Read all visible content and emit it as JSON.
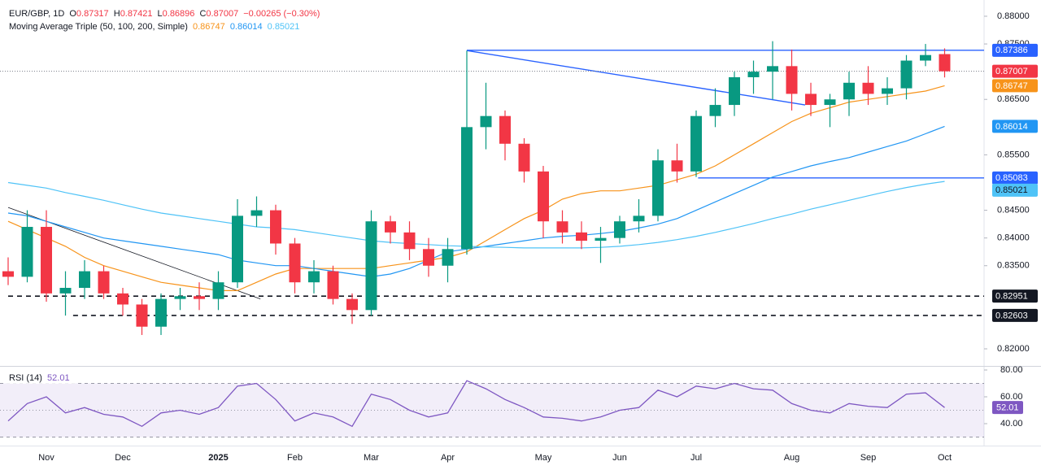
{
  "chart_data": [
    {
      "type": "candlestick",
      "symbol": "EUR/GBP, 1D",
      "ohlc_letters": [
        "O",
        "H",
        "L",
        "C"
      ],
      "change": "−0.00265 (−0.30%)",
      "indicator": "Moving Average Triple (50, 100, 200, Simple)",
      "up_color": "#089981",
      "down_color": "#f23645",
      "open": [
        0.834,
        0.833,
        0.842,
        0.83,
        0.831,
        0.834,
        0.83,
        0.828,
        0.824,
        0.829,
        0.8295,
        0.829,
        0.832,
        0.844,
        0.845,
        0.839,
        0.832,
        0.834,
        0.829,
        0.827,
        0.843,
        0.841,
        0.838,
        0.835,
        0.838,
        0.86,
        0.862,
        0.857,
        0.852,
        0.843,
        0.841,
        0.8395,
        0.84,
        0.843,
        0.844,
        0.854,
        0.852,
        0.862,
        0.864,
        0.869,
        0.87,
        0.871,
        0.866,
        0.864,
        0.865,
        0.868,
        0.866,
        0.867,
        0.872,
        0.87317
      ],
      "high": [
        0.8365,
        0.845,
        0.845,
        0.834,
        0.836,
        0.835,
        0.831,
        0.829,
        0.83,
        0.831,
        0.832,
        0.834,
        0.847,
        0.8475,
        0.846,
        0.84,
        0.836,
        0.835,
        0.83,
        0.845,
        0.844,
        0.843,
        0.84,
        0.84,
        0.8738,
        0.868,
        0.863,
        0.858,
        0.853,
        0.845,
        0.843,
        0.842,
        0.844,
        0.847,
        0.856,
        0.857,
        0.863,
        0.867,
        0.87,
        0.872,
        0.8755,
        0.874,
        0.868,
        0.866,
        0.87,
        0.871,
        0.869,
        0.873,
        0.875,
        0.87421
      ],
      "low": [
        0.8315,
        0.832,
        0.8285,
        0.826,
        0.829,
        0.829,
        0.826,
        0.8225,
        0.8225,
        0.827,
        0.827,
        0.827,
        0.831,
        0.842,
        0.837,
        0.83,
        0.83,
        0.828,
        0.8245,
        0.826,
        0.839,
        0.836,
        0.833,
        0.832,
        0.837,
        0.856,
        0.854,
        0.85,
        0.84,
        0.839,
        0.838,
        0.8355,
        0.839,
        0.841,
        0.843,
        0.85,
        0.851,
        0.86,
        0.862,
        0.866,
        0.865,
        0.863,
        0.862,
        0.86,
        0.862,
        0.864,
        0.864,
        0.865,
        0.871,
        0.86896
      ],
      "close": [
        0.833,
        0.842,
        0.83,
        0.831,
        0.834,
        0.83,
        0.828,
        0.824,
        0.829,
        0.8295,
        0.829,
        0.832,
        0.844,
        0.845,
        0.839,
        0.832,
        0.834,
        0.829,
        0.827,
        0.843,
        0.841,
        0.838,
        0.835,
        0.838,
        0.86,
        0.862,
        0.857,
        0.852,
        0.843,
        0.841,
        0.8395,
        0.84,
        0.843,
        0.844,
        0.854,
        0.852,
        0.862,
        0.864,
        0.869,
        0.87,
        0.871,
        0.866,
        0.864,
        0.865,
        0.868,
        0.866,
        0.867,
        0.872,
        0.873,
        0.87007
      ],
      "series": [
        {
          "color": "#f7931a",
          "values": [
            0.843,
            0.8415,
            0.84,
            0.8385,
            0.8365,
            0.835,
            0.834,
            0.833,
            0.832,
            0.8315,
            0.831,
            0.8305,
            0.8305,
            0.832,
            0.8335,
            0.8345,
            0.8345,
            0.8345,
            0.8345,
            0.8345,
            0.835,
            0.8355,
            0.836,
            0.8365,
            0.8375,
            0.8395,
            0.8415,
            0.8435,
            0.845,
            0.847,
            0.848,
            0.8485,
            0.8485,
            0.849,
            0.8495,
            0.8505,
            0.8515,
            0.853,
            0.855,
            0.857,
            0.859,
            0.861,
            0.8625,
            0.8635,
            0.8645,
            0.865,
            0.8655,
            0.866,
            0.8665,
            0.86747
          ]
        },
        {
          "color": "#2196f3",
          "values": [
            0.8445,
            0.844,
            0.843,
            0.842,
            0.841,
            0.84,
            0.8395,
            0.839,
            0.8385,
            0.838,
            0.8375,
            0.837,
            0.836,
            0.8355,
            0.835,
            0.835,
            0.8345,
            0.834,
            0.8335,
            0.833,
            0.8335,
            0.8345,
            0.836,
            0.8375,
            0.838,
            0.8385,
            0.839,
            0.8395,
            0.84,
            0.8403,
            0.8405,
            0.8408,
            0.8412,
            0.8418,
            0.8425,
            0.8435,
            0.845,
            0.8465,
            0.848,
            0.8495,
            0.851,
            0.852,
            0.853,
            0.8538,
            0.8545,
            0.8555,
            0.8565,
            0.8575,
            0.8588,
            0.86014
          ]
        },
        {
          "color": "#4fc3f7",
          "values": [
            0.85,
            0.8495,
            0.849,
            0.8482,
            0.8475,
            0.8468,
            0.846,
            0.8452,
            0.8445,
            0.844,
            0.8435,
            0.843,
            0.8425,
            0.842,
            0.8418,
            0.8415,
            0.841,
            0.8405,
            0.84,
            0.8395,
            0.8392,
            0.839,
            0.8388,
            0.8386,
            0.8385,
            0.8384,
            0.8383,
            0.8382,
            0.8382,
            0.8382,
            0.8382,
            0.8383,
            0.8385,
            0.8388,
            0.8392,
            0.8397,
            0.8403,
            0.841,
            0.8418,
            0.8426,
            0.8435,
            0.8443,
            0.8452,
            0.846,
            0.8468,
            0.8476,
            0.8484,
            0.8491,
            0.8497,
            0.85021
          ]
        }
      ],
      "levels": [
        {
          "value": 0.87386,
          "from": 24,
          "color": "#2962ff",
          "style": "solid"
        },
        {
          "value": 0.85083,
          "from": 36.1,
          "color": "#2962ff",
          "style": "solid"
        },
        {
          "value": 0.82951,
          "from": 0,
          "color": "#131722",
          "style": "dashed"
        },
        {
          "value": 0.82603,
          "from": 3.4,
          "color": "#131722",
          "style": "dashed"
        }
      ],
      "trendlines": [
        {
          "x": [
            24,
            41.7
          ],
          "y": [
            0.8738,
            0.864
          ],
          "color": "#2962ff"
        },
        {
          "x": [
            0,
            13.2
          ],
          "y": [
            0.8455,
            0.829
          ],
          "color": "#131722"
        }
      ],
      "ylim": [
        0.81692,
        0.88293
      ],
      "yticks": [
        {
          "value": 0.88,
          "label": "0.88000"
        },
        {
          "value": 0.875,
          "label": "0.87500"
        },
        {
          "value": 0.865,
          "label": "0.86500"
        },
        {
          "value": 0.855,
          "label": "0.85500"
        },
        {
          "value": 0.845,
          "label": "0.84500"
        },
        {
          "value": 0.84,
          "label": "0.84000"
        },
        {
          "value": 0.835,
          "label": "0.83500"
        },
        {
          "value": 0.82,
          "label": "0.82000"
        }
      ]
    },
    {
      "type": "line",
      "title": "RSI (14)",
      "color": "#7e57c2",
      "categories": [
        null,
        null,
        "Nov",
        null,
        null,
        null,
        "Dec",
        null,
        null,
        null,
        null,
        "2025",
        null,
        null,
        null,
        "Feb",
        null,
        null,
        null,
        "Mar",
        null,
        null,
        null,
        "Apr",
        null,
        null,
        null,
        null,
        "May",
        null,
        null,
        null,
        "Jun",
        null,
        null,
        null,
        "Jul",
        null,
        null,
        null,
        null,
        "Aug",
        null,
        null,
        null,
        "Sep",
        null,
        null,
        null,
        "Oct"
      ],
      "values": [
        42,
        55,
        60,
        48,
        52,
        47,
        45,
        38,
        48,
        50,
        47,
        52,
        68,
        70,
        58,
        42,
        48,
        45,
        38,
        62,
        58,
        50,
        45,
        48,
        72,
        66,
        58,
        52,
        45,
        44,
        42,
        45,
        50,
        52,
        65,
        60,
        68,
        66,
        70,
        66,
        65,
        55,
        50,
        48,
        55,
        53,
        52,
        62,
        63,
        52.01
      ],
      "band": [
        30,
        70
      ],
      "midline": 50,
      "ylim": [
        23.64,
        83.03
      ],
      "yticks": [
        {
          "value": 80,
          "label": "80.00"
        },
        {
          "value": 60,
          "label": "60.00"
        },
        {
          "value": 40,
          "label": "40.00"
        }
      ]
    }
  ]
}
